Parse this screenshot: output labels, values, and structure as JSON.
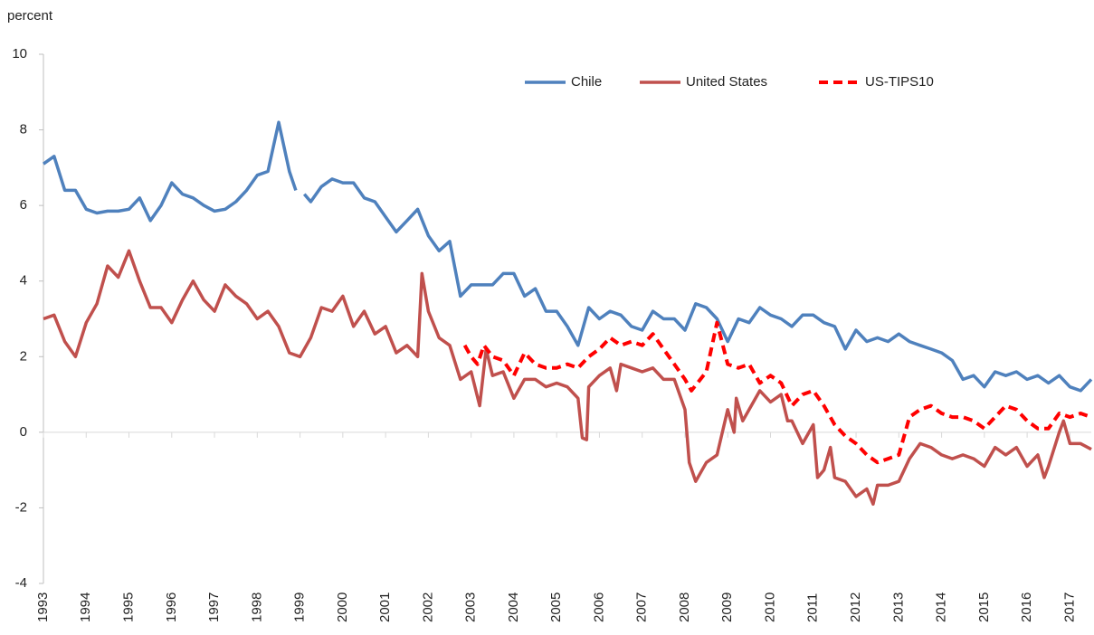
{
  "chart_data": {
    "type": "line",
    "y_label": "percent",
    "xlim": [
      1993,
      2017.5
    ],
    "xticks": [
      1993,
      1994,
      1995,
      1996,
      1997,
      1998,
      1999,
      2000,
      2001,
      2002,
      2003,
      2004,
      2005,
      2006,
      2007,
      2008,
      2009,
      2010,
      2011,
      2012,
      2013,
      2014,
      2015,
      2016,
      2017
    ],
    "ylim": [
      -4,
      10
    ],
    "yticks": [
      -4,
      -2,
      0,
      2,
      4,
      6,
      8,
      10
    ],
    "grid": false,
    "legend": "top",
    "series": [
      {
        "name": "Chile",
        "color": "#4f81bd",
        "dash": false,
        "x": [
          1993,
          1993.25,
          1993.5,
          1993.75,
          1994,
          1994.25,
          1994.5,
          1994.75,
          1995,
          1995.25,
          1995.5,
          1995.75,
          1996,
          1996.25,
          1996.5,
          1996.75,
          1997,
          1997.25,
          1997.5,
          1997.75,
          1998,
          1998.25,
          1998.5,
          1998.75,
          1998.9,
          1999,
          1999.1,
          1999.25,
          1999.5,
          1999.75,
          2000,
          2000.25,
          2000.5,
          2000.75,
          2001,
          2001.25,
          2001.5,
          2001.75,
          2002,
          2002.25,
          2002.5,
          2002.75,
          2003,
          2003.25,
          2003.5,
          2003.75,
          2004,
          2004.25,
          2004.5,
          2004.75,
          2005,
          2005.25,
          2005.5,
          2005.75,
          2006,
          2006.25,
          2006.5,
          2006.75,
          2007,
          2007.25,
          2007.5,
          2007.75,
          2008,
          2008.25,
          2008.5,
          2008.75,
          2009,
          2009.25,
          2009.5,
          2009.75,
          2010,
          2010.25,
          2010.5,
          2010.75,
          2011,
          2011.25,
          2011.5,
          2011.75,
          2012,
          2012.25,
          2012.5,
          2012.75,
          2013,
          2013.25,
          2013.5,
          2013.75,
          2014,
          2014.25,
          2014.5,
          2014.75,
          2015,
          2015.25,
          2015.5,
          2015.75,
          2016,
          2016.25,
          2016.5,
          2016.75,
          2017,
          2017.25,
          2017.5
        ],
        "values": [
          7.1,
          7.3,
          6.4,
          6.4,
          5.9,
          5.8,
          5.85,
          5.85,
          5.9,
          6.2,
          5.6,
          6.0,
          6.6,
          6.3,
          6.2,
          6.0,
          5.85,
          5.9,
          6.1,
          6.4,
          6.8,
          6.9,
          8.2,
          6.9,
          6.4,
          null,
          6.3,
          6.1,
          6.5,
          6.7,
          6.6,
          6.6,
          6.2,
          6.1,
          5.7,
          5.3,
          5.6,
          5.9,
          5.2,
          4.8,
          5.05,
          3.6,
          3.9,
          3.9,
          3.9,
          4.2,
          4.2,
          3.6,
          3.8,
          3.2,
          3.2,
          2.8,
          2.3,
          3.3,
          3.0,
          3.2,
          3.1,
          2.8,
          2.7,
          3.2,
          3.0,
          3.0,
          2.7,
          3.4,
          3.3,
          3.0,
          2.4,
          3.0,
          2.9,
          3.3,
          3.1,
          3.0,
          2.8,
          3.1,
          3.1,
          2.9,
          2.8,
          2.2,
          2.7,
          2.4,
          2.5,
          2.4,
          2.6,
          2.4,
          2.3,
          2.2,
          2.1,
          1.9,
          1.4,
          1.5,
          1.2,
          1.6,
          1.5,
          1.6,
          1.4,
          1.5,
          1.3,
          1.5,
          1.2,
          1.1,
          1.4
        ]
      },
      {
        "name": "United States",
        "color": "#c0504d",
        "dash": false,
        "x": [
          1993,
          1993.25,
          1993.5,
          1993.75,
          1994,
          1994.25,
          1994.5,
          1994.75,
          1995,
          1995.25,
          1995.5,
          1995.75,
          1996,
          1996.25,
          1996.5,
          1996.75,
          1997,
          1997.25,
          1997.5,
          1997.75,
          1998,
          1998.25,
          1998.5,
          1998.75,
          1999,
          1999.25,
          1999.5,
          1999.75,
          2000,
          2000.25,
          2000.5,
          2000.75,
          2001,
          2001.25,
          2001.5,
          2001.75,
          2001.85,
          2002,
          2002.25,
          2002.5,
          2002.75,
          2003,
          2003.2,
          2003.35,
          2003.5,
          2003.75,
          2004,
          2004.25,
          2004.5,
          2004.75,
          2005,
          2005.25,
          2005.5,
          2005.6,
          2005.7,
          2005.75,
          2006,
          2006.25,
          2006.4,
          2006.5,
          2006.75,
          2007,
          2007.25,
          2007.5,
          2007.75,
          2008,
          2008.1,
          2008.25,
          2008.5,
          2008.75,
          2009,
          2009.15,
          2009.2,
          2009.35,
          2009.5,
          2009.75,
          2010,
          2010.25,
          2010.4,
          2010.5,
          2010.75,
          2011,
          2011.1,
          2011.25,
          2011.4,
          2011.5,
          2011.75,
          2012,
          2012.25,
          2012.4,
          2012.5,
          2012.75,
          2013,
          2013.25,
          2013.5,
          2013.75,
          2014,
          2014.25,
          2014.5,
          2014.75,
          2015,
          2015.25,
          2015.5,
          2015.75,
          2016,
          2016.25,
          2016.4,
          2016.5,
          2016.75,
          2016.85,
          2017,
          2017.25,
          2017.5
        ],
        "values": [
          3.0,
          3.1,
          2.4,
          2.0,
          2.9,
          3.4,
          4.4,
          4.1,
          4.8,
          4.0,
          3.3,
          3.3,
          2.9,
          3.5,
          4.0,
          3.5,
          3.2,
          3.9,
          3.6,
          3.4,
          3.0,
          3.2,
          2.8,
          2.1,
          2.0,
          2.5,
          3.3,
          3.2,
          3.6,
          2.8,
          3.2,
          2.6,
          2.8,
          2.1,
          2.3,
          2.0,
          4.2,
          3.2,
          2.5,
          2.3,
          1.4,
          1.6,
          0.7,
          2.2,
          1.5,
          1.6,
          0.9,
          1.4,
          1.4,
          1.2,
          1.3,
          1.2,
          0.9,
          -0.15,
          -0.2,
          1.2,
          1.5,
          1.7,
          1.1,
          1.8,
          1.7,
          1.6,
          1.7,
          1.4,
          1.4,
          0.6,
          -0.8,
          -1.3,
          -0.8,
          -0.6,
          0.6,
          0.0,
          0.9,
          0.3,
          0.6,
          1.1,
          0.8,
          1.0,
          0.3,
          0.3,
          -0.3,
          0.2,
          -1.2,
          -1.0,
          -0.4,
          -1.2,
          -1.3,
          -1.7,
          -1.5,
          -1.9,
          -1.4,
          -1.4,
          -1.3,
          -0.7,
          -0.3,
          -0.4,
          -0.6,
          -0.7,
          -0.6,
          -0.7,
          -0.9,
          -0.4,
          -0.6,
          -0.4,
          -0.9,
          -0.6,
          -1.2,
          -0.9,
          0.0,
          0.3,
          -0.3,
          -0.3,
          -0.45
        ]
      },
      {
        "name": "US-TIPS10",
        "color": "#ff0000",
        "dash": true,
        "x": [
          2002.85,
          2003,
          2003.15,
          2003.3,
          2003.5,
          2003.75,
          2004,
          2004.25,
          2004.5,
          2004.75,
          2005,
          2005.25,
          2005.5,
          2005.75,
          2006,
          2006.25,
          2006.5,
          2006.75,
          2007,
          2007.25,
          2007.5,
          2007.75,
          2008,
          2008.15,
          2008.5,
          2008.75,
          2009,
          2009.25,
          2009.5,
          2009.75,
          2010,
          2010.25,
          2010.5,
          2010.75,
          2011,
          2011.25,
          2011.5,
          2011.75,
          2012,
          2012.25,
          2012.5,
          2012.75,
          2013,
          2013.25,
          2013.5,
          2013.75,
          2014,
          2014.25,
          2014.5,
          2014.75,
          2015,
          2015.25,
          2015.5,
          2015.75,
          2016,
          2016.25,
          2016.5,
          2016.75,
          2017,
          2017.25,
          2017.5
        ],
        "values": [
          2.3,
          2.0,
          1.8,
          2.3,
          2.0,
          1.9,
          1.5,
          2.1,
          1.8,
          1.7,
          1.7,
          1.8,
          1.7,
          2.0,
          2.2,
          2.5,
          2.3,
          2.4,
          2.3,
          2.6,
          2.2,
          1.8,
          1.4,
          1.1,
          1.6,
          2.9,
          1.8,
          1.7,
          1.8,
          1.3,
          1.5,
          1.3,
          0.7,
          1.0,
          1.1,
          0.7,
          0.2,
          -0.1,
          -0.3,
          -0.6,
          -0.8,
          -0.7,
          -0.6,
          0.4,
          0.6,
          0.7,
          0.5,
          0.4,
          0.4,
          0.3,
          0.1,
          0.4,
          0.7,
          0.6,
          0.3,
          0.1,
          0.1,
          0.5,
          0.4,
          0.5,
          0.4
        ]
      }
    ]
  }
}
